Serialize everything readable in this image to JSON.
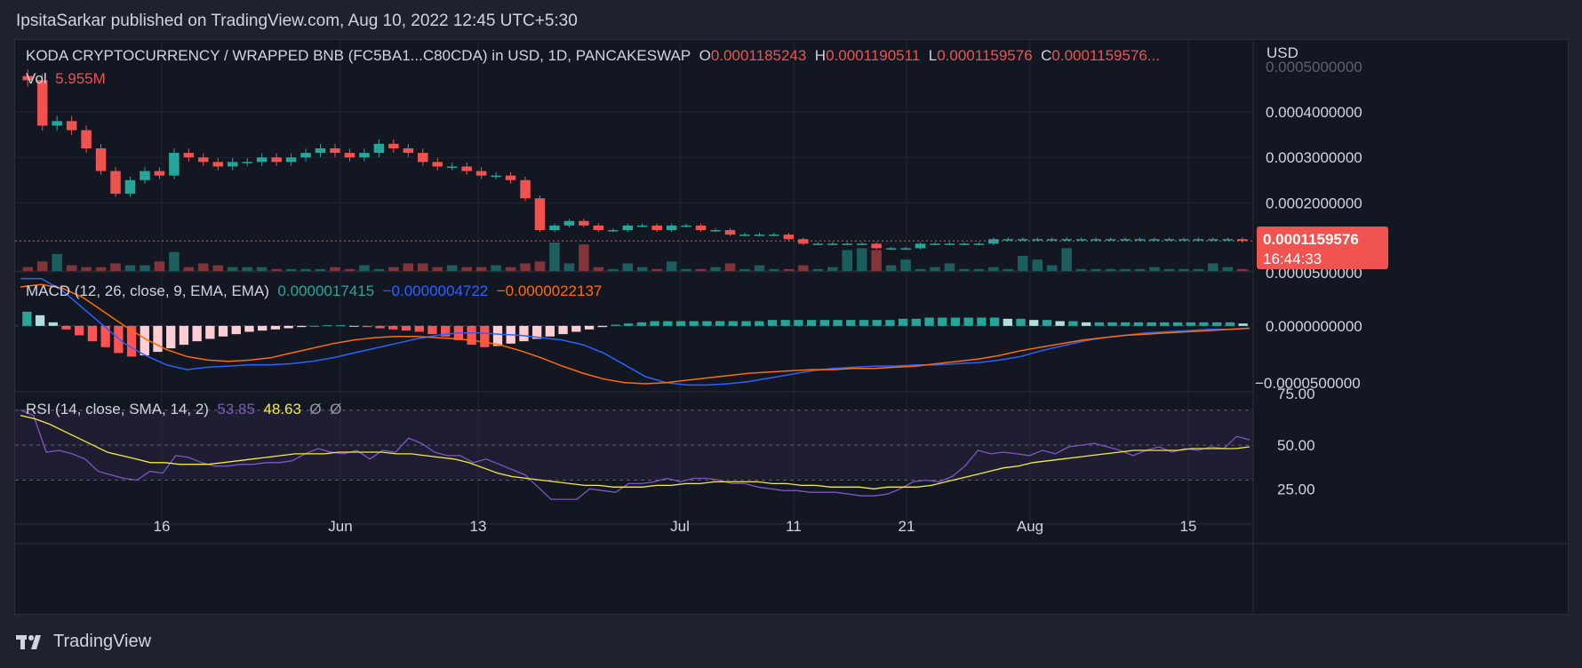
{
  "header": {
    "published": "IpsitaSarkar published on TradingView.com, Aug 10, 2022 12:45 UTC+5:30"
  },
  "footer": {
    "brand": "TradingView",
    "logo_icon": "tradingview-logo-icon"
  },
  "colors": {
    "up": "#26a69a",
    "down": "#ef5350",
    "macd": "#2962ff",
    "signal": "#ff6d00",
    "rsi": "#7e57c2",
    "rsi_sma": "#f5eb3b",
    "text": "#d1d4dc",
    "bg": "#131722",
    "price_tag": "#f05350"
  },
  "legend": {
    "symbol": "KODA CRYPTOCURRENCY / WRAPPED BNB (FC5BA1...C80CDA) in USD, 1D, PANCAKESWAP",
    "o_label": "O",
    "o_value": "0.0001185243",
    "h_label": "H",
    "h_value": "0.0001190511",
    "l_label": "L",
    "l_value": "0.0001159576",
    "c_label": "C",
    "c_value": "0.0001159576...",
    "vol_label": "Vol",
    "vol_value": "5.955M",
    "macd_label": "MACD (12, 26, close, 9, EMA, EMA)",
    "macd_hist": "0.0000017415",
    "macd_line": "−0.0000004722",
    "macd_signal": "−0.0000022137",
    "rsi_label": "RSI (14, close, SMA, 14, 2)",
    "rsi_value": "53.85",
    "rsi_sma_value": "48.63",
    "rsi_extra1": "Ø",
    "rsi_extra2": "Ø"
  },
  "chart_data": {
    "type": "candlestick",
    "currency": "USD",
    "last_price": "0.0001159576",
    "countdown": "16:44:33",
    "x_tick_labels": [
      "16",
      "Jun",
      "13",
      "Jul",
      "11",
      "21",
      "Aug",
      "15"
    ],
    "price_axis": {
      "ticks": [
        "0.0004000000",
        "0.0003000000",
        "0.0002000000",
        "0.0000500000"
      ],
      "top_cut": "0.0005000000",
      "values": [
        0.0004,
        0.0003,
        0.0002,
        5e-05
      ]
    },
    "macd_axis": {
      "ticks": [
        "0.0000000000",
        "−0.0000500000"
      ]
    },
    "rsi_axis": {
      "ticks": [
        "75.00",
        "50.00",
        "25.00"
      ],
      "band": [
        30,
        70
      ]
    },
    "closes": [
      0.00047,
      0.00037,
      0.00038,
      0.00036,
      0.00032,
      0.00027,
      0.00022,
      0.00025,
      0.00027,
      0.00026,
      0.00031,
      0.0003,
      0.00029,
      0.00028,
      0.00029,
      0.00029,
      0.0003,
      0.00029,
      0.0003,
      0.00031,
      0.00032,
      0.00031,
      0.0003,
      0.00031,
      0.00033,
      0.00032,
      0.00031,
      0.00029,
      0.00028,
      0.00028,
      0.00027,
      0.00026,
      0.00026,
      0.00025,
      0.00021,
      0.00014,
      0.00015,
      0.00016,
      0.00015,
      0.00014,
      0.00014,
      0.00015,
      0.00015,
      0.00014,
      0.00015,
      0.00015,
      0.00014,
      0.00014,
      0.00013,
      0.00013,
      0.00013,
      0.00013,
      0.00012,
      0.00011,
      0.00011,
      0.00011,
      0.00011,
      0.00011,
      0.0001,
      0.0001,
      0.0001,
      0.00011,
      0.00011,
      0.00011,
      0.00011,
      0.00011,
      0.00012,
      0.00012,
      0.00012,
      0.00012,
      0.00012,
      0.00012,
      0.00012,
      0.00012,
      0.00012,
      0.00012,
      0.00012,
      0.00012,
      0.00012,
      0.00012,
      0.00012,
      0.00012,
      0.00012,
      0.000116
    ],
    "volumes": [
      2,
      5,
      9,
      3,
      2,
      2,
      4,
      3,
      3,
      5,
      10,
      2,
      4,
      3,
      2,
      2,
      2,
      1,
      1,
      1,
      1,
      2,
      1,
      3,
      1,
      2,
      4,
      4,
      2,
      3,
      2,
      2,
      3,
      2,
      4,
      5,
      15,
      4,
      14,
      2,
      1,
      4,
      2,
      1,
      5,
      1,
      1,
      2,
      4,
      1,
      3,
      1,
      1,
      3,
      1,
      2,
      11,
      12,
      11,
      3,
      6,
      1,
      2,
      4,
      1,
      1,
      2,
      1,
      8,
      6,
      3,
      12,
      1,
      1,
      1,
      1,
      1,
      2,
      1,
      1,
      1,
      4,
      2,
      1,
      1,
      1,
      5,
      2,
      1,
      1,
      1,
      2,
      10,
      1
    ],
    "macd_hist": [
      1.2,
      0.9,
      0.3,
      -0.3,
      -0.8,
      -1.3,
      -1.8,
      -2.3,
      -2.6,
      -2.5,
      -2.2,
      -1.9,
      -1.6,
      -1.3,
      -1.1,
      -0.9,
      -0.7,
      -0.5,
      -0.4,
      -0.3,
      -0.2,
      -0.1,
      0.0,
      0.05,
      0.05,
      0.0,
      -0.1,
      -0.2,
      -0.3,
      -0.4,
      -0.5,
      -0.7,
      -0.9,
      -1.2,
      -1.6,
      -1.8,
      -1.7,
      -1.5,
      -1.3,
      -1.1,
      -0.9,
      -0.7,
      -0.5,
      -0.3,
      -0.1,
      0.1,
      0.2,
      0.3,
      0.4,
      0.4,
      0.4,
      0.4,
      0.4,
      0.4,
      0.4,
      0.4,
      0.4,
      0.5,
      0.5,
      0.5,
      0.5,
      0.5,
      0.5,
      0.5,
      0.5,
      0.5,
      0.5,
      0.6,
      0.6,
      0.7,
      0.7,
      0.7,
      0.7,
      0.7,
      0.7,
      0.6,
      0.6,
      0.5,
      0.5,
      0.4,
      0.4,
      0.3,
      0.3,
      0.3,
      0.3,
      0.3,
      0.3,
      0.3,
      0.3,
      0.3,
      0.3,
      0.3,
      0.3,
      0.2
    ],
    "macd_line": [
      4.0,
      4.0,
      3.0,
      1.5,
      0.0,
      -1.5,
      -2.5,
      -3.3,
      -3.7,
      -3.5,
      -3.4,
      -3.3,
      -3.3,
      -3.2,
      -3.0,
      -2.7,
      -2.3,
      -1.9,
      -1.5,
      -1.1,
      -0.8,
      -0.6,
      -0.6,
      -0.7,
      -0.8,
      -1.0,
      -1.2,
      -1.6,
      -2.3,
      -3.3,
      -4.3,
      -4.8,
      -5.0,
      -5.0,
      -4.9,
      -4.7,
      -4.4,
      -4.1,
      -3.8,
      -3.6,
      -3.5,
      -3.4,
      -3.4,
      -3.3,
      -3.3,
      -3.2,
      -3.1,
      -2.9,
      -2.6,
      -2.1,
      -1.7,
      -1.3,
      -1.0,
      -0.8,
      -0.6,
      -0.5,
      -0.4,
      -0.3,
      -0.3,
      -0.2
    ],
    "macd_signal": [
      3.3,
      3.5,
      3.2,
      2.4,
      1.2,
      0.0,
      -1.1,
      -2.0,
      -2.6,
      -2.9,
      -3.0,
      -2.9,
      -2.7,
      -2.3,
      -1.9,
      -1.5,
      -1.2,
      -1.0,
      -0.9,
      -0.9,
      -1.0,
      -1.1,
      -1.3,
      -1.6,
      -2.1,
      -2.7,
      -3.4,
      -4.0,
      -4.5,
      -4.8,
      -4.9,
      -4.8,
      -4.6,
      -4.4,
      -4.2,
      -4.0,
      -3.9,
      -3.8,
      -3.7,
      -3.7,
      -3.6,
      -3.6,
      -3.5,
      -3.4,
      -3.2,
      -3.0,
      -2.8,
      -2.5,
      -2.1,
      -1.8,
      -1.5,
      -1.2,
      -1.0,
      -0.8,
      -0.7,
      -0.6,
      -0.5,
      -0.4,
      -0.3,
      -0.2
    ],
    "rsi": [
      70,
      67,
      46,
      47,
      45,
      42,
      35,
      33,
      31,
      30,
      35,
      34,
      44,
      43,
      40,
      38,
      38,
      39,
      39,
      40,
      40,
      41,
      45,
      48,
      46,
      45,
      47,
      42,
      47,
      46,
      54,
      51,
      46,
      44,
      44,
      40,
      42,
      39,
      36,
      33,
      26,
      19,
      19,
      19,
      25,
      24,
      23,
      28,
      28,
      29,
      31,
      29,
      31,
      31,
      30,
      28,
      28,
      26,
      25,
      24,
      24,
      23,
      23,
      23,
      22,
      21,
      21,
      22,
      25,
      29,
      30,
      29,
      32,
      38,
      47,
      45,
      46,
      45,
      44,
      47,
      45,
      49,
      50,
      51,
      49,
      47,
      44,
      47,
      49,
      46,
      48,
      47,
      49,
      48,
      55,
      53
    ],
    "rsi_sma": [
      67,
      65,
      62,
      58,
      54,
      50,
      46,
      44,
      42,
      40,
      40,
      39,
      39,
      39,
      40,
      41,
      42,
      43,
      44,
      45,
      45,
      45,
      46,
      46,
      46,
      46,
      45,
      45,
      44,
      43,
      42,
      40,
      37,
      34,
      32,
      31,
      30,
      29,
      28,
      27,
      27,
      26,
      26,
      26,
      27,
      27,
      28,
      28,
      29,
      29,
      29,
      29,
      28,
      28,
      27,
      27,
      26,
      26,
      26,
      25,
      26,
      26,
      26,
      27,
      29,
      31,
      33,
      35,
      37,
      38,
      40,
      41,
      42,
      43,
      44,
      45,
      46,
      47,
      47,
      47,
      47,
      48,
      48,
      48,
      48,
      49
    ],
    "ranges": {
      "price_min": 5e-05,
      "price_max": 0.0005,
      "macd_min": -5.5,
      "macd_max": 4.5,
      "rsi_min": 15,
      "rsi_max": 80
    }
  }
}
